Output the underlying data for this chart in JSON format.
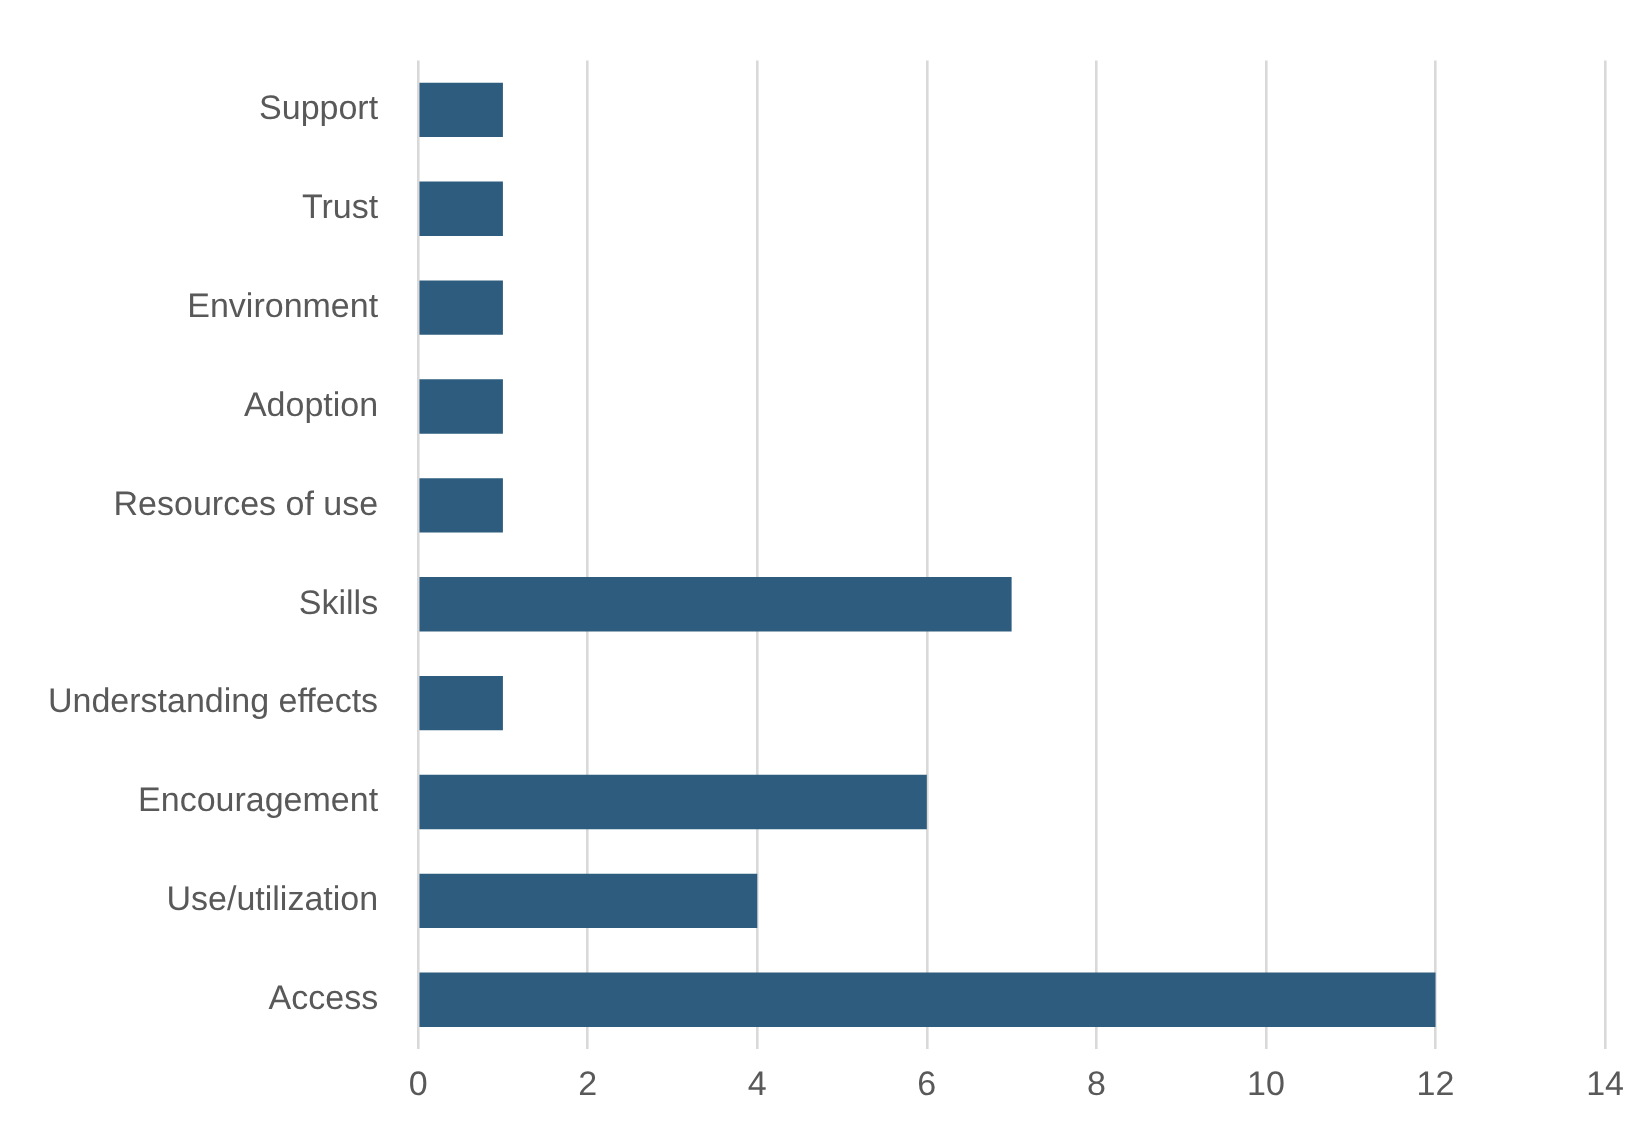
{
  "chart_data": {
    "type": "bar",
    "orientation": "horizontal",
    "categories": [
      "Support",
      "Trust",
      "Environment",
      "Adoption",
      "Resources of use",
      "Skills",
      "Understanding effects",
      "Encouragement",
      "Use/utilization",
      "Access"
    ],
    "values": [
      1,
      1,
      1,
      1,
      1,
      7,
      1,
      6,
      4,
      12
    ],
    "color": "#2e5c7e",
    "xlim": [
      0,
      14
    ],
    "xticks": [
      0,
      2,
      4,
      6,
      8,
      10,
      12,
      14
    ],
    "grid": "x",
    "legend": false
  }
}
